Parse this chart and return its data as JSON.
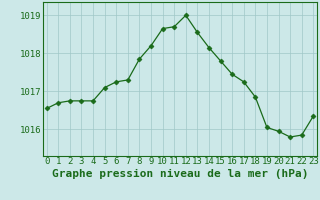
{
  "x": [
    0,
    1,
    2,
    3,
    4,
    5,
    6,
    7,
    8,
    9,
    10,
    11,
    12,
    13,
    14,
    15,
    16,
    17,
    18,
    19,
    20,
    21,
    22,
    23
  ],
  "y": [
    1016.55,
    1016.7,
    1016.75,
    1016.75,
    1016.75,
    1017.1,
    1017.25,
    1017.3,
    1017.85,
    1018.2,
    1018.65,
    1018.7,
    1019.0,
    1018.55,
    1018.15,
    1017.8,
    1017.45,
    1017.25,
    1016.85,
    1016.05,
    1015.95,
    1015.8,
    1015.85,
    1016.35
  ],
  "line_color": "#1a6b1a",
  "marker": "D",
  "marker_size": 2.5,
  "bg_color": "#cce8e8",
  "grid_color": "#a0c8c8",
  "ylabel_ticks": [
    1016,
    1017,
    1018,
    1019
  ],
  "xlabel_ticks": [
    0,
    1,
    2,
    3,
    4,
    5,
    6,
    7,
    8,
    9,
    10,
    11,
    12,
    13,
    14,
    15,
    16,
    17,
    18,
    19,
    20,
    21,
    22,
    23
  ],
  "xlim": [
    -0.3,
    23.3
  ],
  "ylim": [
    1015.3,
    1019.35
  ],
  "xlabel": "Graphe pression niveau de la mer (hPa)",
  "xlabel_fontsize": 8,
  "tick_fontsize": 6.5,
  "tick_color": "#1a6b1a",
  "label_color": "#1a6b1a"
}
